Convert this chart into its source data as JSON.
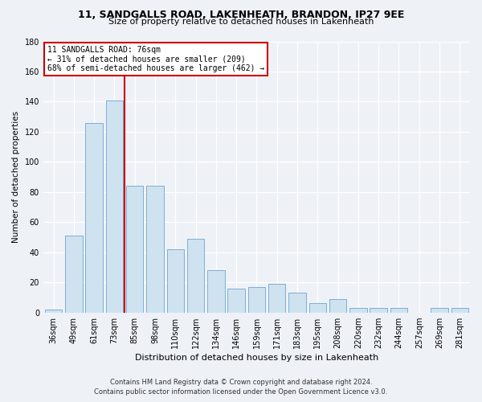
{
  "title_line1": "11, SANDGALLS ROAD, LAKENHEATH, BRANDON, IP27 9EE",
  "title_line2": "Size of property relative to detached houses in Lakenheath",
  "xlabel": "Distribution of detached houses by size in Lakenheath",
  "ylabel": "Number of detached properties",
  "categories": [
    "36sqm",
    "49sqm",
    "61sqm",
    "73sqm",
    "85sqm",
    "98sqm",
    "110sqm",
    "122sqm",
    "134sqm",
    "146sqm",
    "159sqm",
    "171sqm",
    "183sqm",
    "195sqm",
    "208sqm",
    "220sqm",
    "232sqm",
    "244sqm",
    "257sqm",
    "269sqm",
    "281sqm"
  ],
  "values": [
    2,
    51,
    126,
    141,
    84,
    84,
    42,
    49,
    28,
    16,
    17,
    19,
    13,
    6,
    9,
    3,
    3,
    3,
    0,
    3,
    3
  ],
  "bar_color": "#cfe2f0",
  "bar_edge_color": "#7bafd4",
  "vline_color": "#cc0000",
  "vline_pos": 3.5,
  "annotation_title": "11 SANDGALLS ROAD: 76sqm",
  "annotation_line2": "← 31% of detached houses are smaller (209)",
  "annotation_line3": "68% of semi-detached houses are larger (462) →",
  "annotation_box_color": "#ffffff",
  "annotation_box_edge": "#cc0000",
  "ylim": [
    0,
    180
  ],
  "yticks": [
    0,
    20,
    40,
    60,
    80,
    100,
    120,
    140,
    160,
    180
  ],
  "footer_line1": "Contains HM Land Registry data © Crown copyright and database right 2024.",
  "footer_line2": "Contains public sector information licensed under the Open Government Licence v3.0.",
  "bg_color": "#eef2f7",
  "grid_color": "#ffffff",
  "plot_bg_color": "#eef2f7"
}
